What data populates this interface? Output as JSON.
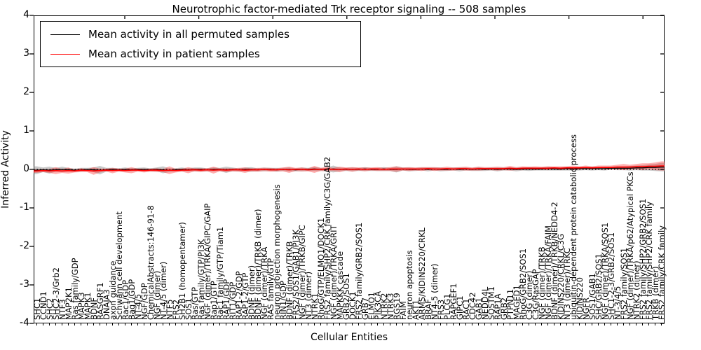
{
  "chart_data": {
    "type": "line",
    "title": "Neurotrophic factor-mediated Trk receptor signaling -- 508 samples",
    "xlabel": "Cellular Entities",
    "ylabel": "Inferred Activity",
    "ylim": [
      -4,
      4
    ],
    "yticks": [
      4,
      3,
      2,
      1,
      0,
      -1,
      -2,
      -3,
      -4
    ],
    "grid": false,
    "legend_position": "upper left",
    "zero_line_style": "dotted",
    "colors": {
      "permuted_line": "#000000",
      "patient_line": "#ff0000",
      "permuted_band": "rgba(120,120,120,0.40)",
      "patient_band": "rgba(255,30,30,0.35)",
      "frame": "#000000",
      "background": "#ffffff"
    },
    "categories": [
      "SHC1",
      "CCND1",
      "SHC2",
      "SHC2-3/Grb2",
      "NTF3",
      "MAP2K1",
      "Ras family/GDP",
      "MAPK3",
      "MAPK1",
      "BDNF",
      "RASGRF1",
      "DNAJA3",
      "axon guidance",
      "Schwann cell development",
      "Rac1/GDP",
      "Bag1/GDP",
      "NT-4/5",
      "NGF/GDP",
      "ChemicalAbstracts:146-91-8",
      "NGF (dimer)",
      "NT-4/5 (dimer)",
      "NTF5",
      "FRS2",
      "SH2B1 (homopentamer)",
      "SOS1",
      "Ras/GTP",
      "Ras family/GTP/PI3K",
      "NGF (dimer)/TRKA/GIPC/GAIP",
      "Rap1/GTP",
      "Rac1 family/GTP/Tiam1",
      "RAP1/GDP",
      "RIT1/GDP",
      "RAP1-2/GDP",
      "RAP1-2/GTP",
      "BDNF (dimer)",
      "BDNF (dimer)/TRKB (dimer)",
      "NGF (dimer)/TRKA",
      "RAS family/GTP",
      "neuron projection morphogenesis",
      "RIN1/GDP",
      "BDNF (dimer)/TRKB",
      "FRS2/SOS1/GAB1/PI3K",
      "NGF (dimer)/TRKB/GIPC",
      "NT3 (dimer)",
      "NTRK1",
      "RhoG/GTP/ELMO1/DOCK1",
      "FRS2 family/SHP2/CRK family/C3G/GAB2",
      "NGF (dimer)/TRKA/GRIT",
      "MAPKKK cascade",
      "GRB2/SOS1",
      "DOCK1",
      "FRS2 family/GRB2/SOS1",
      "GRB7",
      "ELMO1",
      "PIK3CA",
      "NTRK2",
      "NTRK3",
      "RGS19",
      "FAIM",
      "neuron apoptosis",
      "AKT1",
      "ARMS/KIDINS220/CRKL",
      "BRAF",
      "NT4-5 (dimer)",
      "FRS3",
      "PLCG1",
      "RAPGEF1",
      "GIPC1",
      "RAC1",
      "CDC42",
      "GAB1",
      "NEDD4L",
      "SQSTM1",
      "RAP1A",
      "GRB2",
      "PTPN11",
      "MAGED1",
      "RhoG/GRB2/SOS1",
      "C3G (dimer)",
      "C3G/RasGAP",
      "NGF (dimer)/TRKB",
      "NGF (dimer)/TRKA/FAIM",
      "BDNF (dimer)/TRKB/NEDD4-2",
      "KIDINS220/CRKL/C3G",
      "NT3 (dimer)/TRKC",
      "ubiquitin-dependent protein catabolic process",
      "KIDINS220",
      "NGFR",
      "SOS1/GAB1",
      "SHC/GRB2/SOS1",
      "NGF (dimer)/TRKA/SOS1",
      "SHC1-2-3/GRB2/SOS1",
      "NT-3/4/5",
      "FRS2 family/SOS1",
      "NGF (dimer)/TRKA/p62/Atypical PKCs",
      "NTRK2 (dimer)",
      "FRS2 family/SHP2/GRB2/SOS1",
      "FRS2 family/SHP2/CRK family",
      "TRKB (dimer)",
      "FRS2 family/CRK family"
    ],
    "series": [
      {
        "name": "Mean activity in all permuted samples",
        "color": "#000000",
        "values": [
          -0.02,
          -0.01,
          -0.02,
          -0.01,
          0.0,
          -0.01,
          -0.02,
          -0.01,
          0.0,
          -0.01,
          -0.02,
          -0.01,
          0.0,
          -0.01,
          0.0,
          -0.01,
          0.0,
          0.0,
          -0.01,
          0.0,
          -0.01,
          -0.02,
          -0.01,
          0.0,
          -0.01,
          0.0,
          0.0,
          -0.01,
          0.0,
          0.0,
          -0.01,
          0.0,
          -0.01,
          0.0,
          0.0,
          -0.01,
          0.0,
          0.0,
          -0.01,
          0.0,
          0.0,
          -0.01,
          0.0,
          0.0,
          0.01,
          0.0,
          0.0,
          0.01,
          0.0,
          0.0,
          0.0,
          0.0,
          0.01,
          0.0,
          0.0,
          0.01,
          0.0,
          0.0,
          0.01,
          0.0,
          0.0,
          0.01,
          0.0,
          0.01,
          0.0,
          0.0,
          0.01,
          0.0,
          0.01,
          0.0,
          0.01,
          0.0,
          0.01,
          0.0,
          0.01,
          0.01,
          0.0,
          0.01,
          0.01,
          0.01,
          0.01,
          0.02,
          0.01,
          0.01,
          0.02,
          0.01,
          0.02,
          0.02,
          0.02,
          0.02,
          0.02,
          0.03,
          0.03,
          0.03,
          0.03,
          0.04,
          0.04,
          0.05,
          0.05,
          0.06
        ],
        "band_halfwidth": [
          0.1,
          0.06,
          0.09,
          0.05,
          0.07,
          0.05,
          0.04,
          0.05,
          0.04,
          0.06,
          0.11,
          0.05,
          0.04,
          0.04,
          0.05,
          0.04,
          0.04,
          0.05,
          0.04,
          0.05,
          0.09,
          0.05,
          0.04,
          0.05,
          0.04,
          0.05,
          0.05,
          0.04,
          0.05,
          0.04,
          0.08,
          0.05,
          0.04,
          0.05,
          0.06,
          0.04,
          0.05,
          0.04,
          0.05,
          0.04,
          0.05,
          0.04,
          0.05,
          0.04,
          0.05,
          0.04,
          0.05,
          0.09,
          0.05,
          0.04,
          0.05,
          0.04,
          0.05,
          0.04,
          0.04,
          0.05,
          0.04,
          0.08,
          0.04,
          0.05,
          0.04,
          0.04,
          0.05,
          0.04,
          0.05,
          0.04,
          0.04,
          0.05,
          0.04,
          0.04,
          0.05,
          0.04,
          0.04,
          0.05,
          0.04,
          0.04,
          0.05,
          0.04,
          0.05,
          0.04,
          0.04,
          0.05,
          0.04,
          0.04,
          0.05,
          0.04,
          0.05,
          0.04,
          0.05,
          0.04,
          0.05,
          0.04,
          0.05,
          0.05,
          0.06,
          0.06,
          0.07,
          0.08,
          0.09,
          0.11
        ]
      },
      {
        "name": "Mean activity in patient samples",
        "color": "#ff0000",
        "values": [
          -0.04,
          -0.03,
          -0.04,
          -0.03,
          -0.04,
          -0.03,
          -0.04,
          -0.02,
          -0.03,
          -0.04,
          -0.03,
          -0.02,
          -0.03,
          -0.02,
          -0.03,
          -0.02,
          -0.02,
          -0.03,
          -0.02,
          -0.02,
          -0.03,
          -0.02,
          -0.03,
          -0.02,
          -0.02,
          -0.01,
          -0.02,
          -0.01,
          -0.02,
          -0.01,
          -0.02,
          -0.01,
          -0.01,
          -0.02,
          -0.01,
          -0.01,
          0.0,
          -0.01,
          -0.01,
          0.0,
          -0.01,
          0.0,
          0.0,
          -0.01,
          0.0,
          0.0,
          0.01,
          0.0,
          0.0,
          0.01,
          0.0,
          0.01,
          0.0,
          0.01,
          0.01,
          0.0,
          0.01,
          0.01,
          0.01,
          0.01,
          0.01,
          0.01,
          0.02,
          0.01,
          0.01,
          0.02,
          0.01,
          0.02,
          0.02,
          0.01,
          0.02,
          0.02,
          0.02,
          0.02,
          0.02,
          0.03,
          0.02,
          0.03,
          0.03,
          0.03,
          0.03,
          0.03,
          0.04,
          0.03,
          0.04,
          0.04,
          0.04,
          0.05,
          0.04,
          0.05,
          0.05,
          0.05,
          0.06,
          0.06,
          0.06,
          0.07,
          0.07,
          0.08,
          0.08,
          0.09
        ],
        "band_halfwidth": [
          0.05,
          0.04,
          0.05,
          0.09,
          0.05,
          0.08,
          0.04,
          0.05,
          0.04,
          0.1,
          0.05,
          0.04,
          0.07,
          0.04,
          0.05,
          0.08,
          0.04,
          0.05,
          0.04,
          0.05,
          0.04,
          0.1,
          0.05,
          0.04,
          0.08,
          0.04,
          0.05,
          0.04,
          0.09,
          0.04,
          0.05,
          0.04,
          0.05,
          0.07,
          0.04,
          0.05,
          0.04,
          0.05,
          0.04,
          0.05,
          0.08,
          0.04,
          0.05,
          0.04,
          0.09,
          0.04,
          0.05,
          0.04,
          0.07,
          0.04,
          0.06,
          0.04,
          0.05,
          0.04,
          0.05,
          0.04,
          0.05,
          0.07,
          0.04,
          0.05,
          0.04,
          0.05,
          0.04,
          0.05,
          0.04,
          0.05,
          0.04,
          0.04,
          0.05,
          0.04,
          0.05,
          0.04,
          0.04,
          0.05,
          0.04,
          0.06,
          0.04,
          0.05,
          0.04,
          0.05,
          0.04,
          0.05,
          0.04,
          0.05,
          0.04,
          0.06,
          0.04,
          0.05,
          0.04,
          0.05,
          0.05,
          0.05,
          0.06,
          0.08,
          0.06,
          0.07,
          0.09,
          0.08,
          0.1,
          0.12
        ]
      }
    ]
  }
}
